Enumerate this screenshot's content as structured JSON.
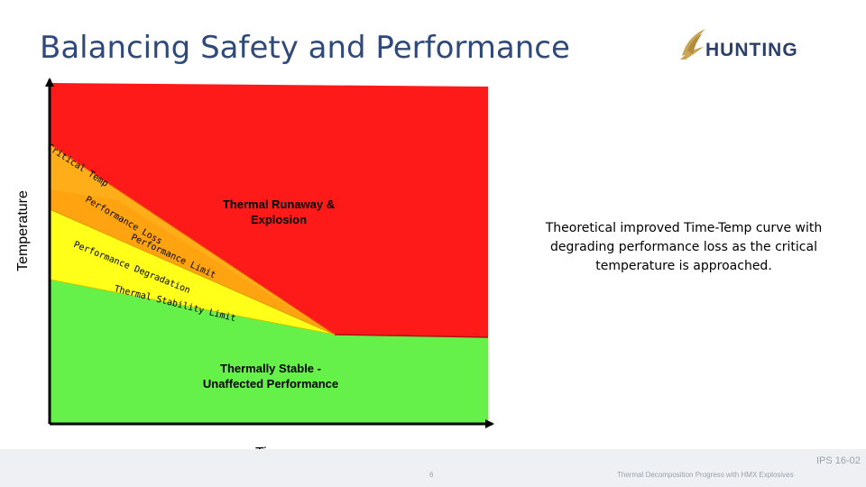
{
  "title": "Balancing Safety and Performance",
  "logo": {
    "text": "HUNTING"
  },
  "diagram": {
    "y_axis_label": "Temperature",
    "x_axis_label": "Time",
    "regions": {
      "runaway": "Thermal Runaway & Explosion",
      "stable": "Thermally Stable - Unaffected Performance"
    },
    "bands": {
      "critical_temp": "Critical Temp",
      "performance_loss": "Performance Loss",
      "performance_limit": "Performance Limit",
      "performance_degradation": "Performance Degradation",
      "thermal_stability_limit": "Thermal Stability Limit"
    },
    "colors": {
      "runaway": "#ff1a1a",
      "orange": "#ffae1a",
      "yellow": "#ffff1a",
      "green": "#66f04a"
    },
    "note": "Theoretical improved Time-Temp curve with degrading performance loss as the critical temperature is approached."
  },
  "footer": {
    "page": "6",
    "text": "Thermal Decomposition Progress with HMX Explosives",
    "code": "IPS 16-02"
  }
}
